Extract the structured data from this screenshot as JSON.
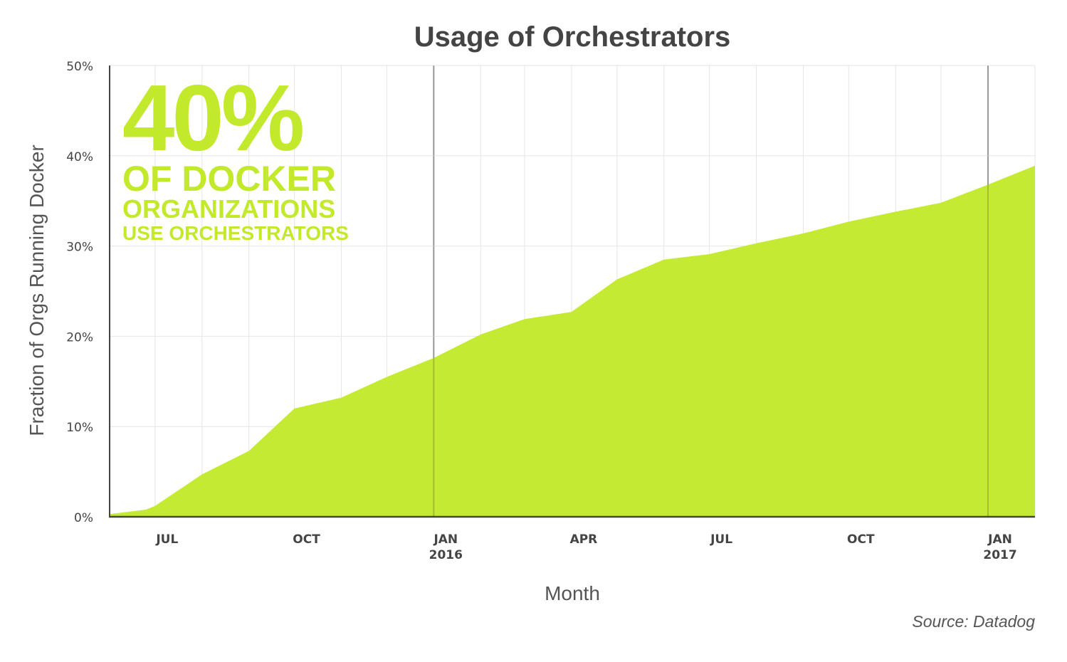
{
  "chart_data": {
    "type": "area",
    "title": "Usage of Orchestrators",
    "xlabel": "Month",
    "ylabel": "Fraction of Orgs Running Docker",
    "source": "Source: Datadog",
    "x": [
      "2015-06-01",
      "2015-06-25",
      "2015-07-01",
      "2015-08-01",
      "2015-09-01",
      "2015-10-01",
      "2015-11-01",
      "2015-12-01",
      "2016-01-01",
      "2016-02-01",
      "2016-03-01",
      "2016-04-01",
      "2016-05-01",
      "2016-06-01",
      "2016-07-01",
      "2016-08-01",
      "2016-09-01",
      "2016-10-01",
      "2016-11-01",
      "2016-12-01",
      "2017-01-01",
      "2017-02-01"
    ],
    "values": [
      0.3,
      0.8,
      1.2,
      4.7,
      7.3,
      12.0,
      13.2,
      15.5,
      17.6,
      20.2,
      21.9,
      22.7,
      26.3,
      28.5,
      29.1,
      30.3,
      31.4,
      32.7,
      33.8,
      34.8,
      36.8,
      38.9
    ],
    "ylim": [
      0,
      50
    ],
    "xlim": [
      "2015-06-01",
      "2017-02-01"
    ],
    "yticks": [
      0,
      10,
      20,
      30,
      40,
      50
    ],
    "ytick_labels": [
      "0%",
      "10%",
      "20%",
      "30%",
      "40%",
      "50%"
    ],
    "xticks": [
      {
        "date": "2015-07-01",
        "label": "JUL",
        "sub": ""
      },
      {
        "date": "2015-10-01",
        "label": "OCT",
        "sub": ""
      },
      {
        "date": "2016-01-01",
        "label": "JAN",
        "sub": "2016"
      },
      {
        "date": "2016-04-01",
        "label": "APR",
        "sub": ""
      },
      {
        "date": "2016-07-01",
        "label": "JUL",
        "sub": ""
      },
      {
        "date": "2016-10-01",
        "label": "OCT",
        "sub": ""
      },
      {
        "date": "2017-01-01",
        "label": "JAN",
        "sub": "2017"
      }
    ],
    "grid": true,
    "fill_color": "#c3e92d",
    "annotation": {
      "big": "40%",
      "line1": "OF DOCKER",
      "line2": "ORGANIZATIONS",
      "line3": "USE ORCHESTRATORS"
    }
  }
}
